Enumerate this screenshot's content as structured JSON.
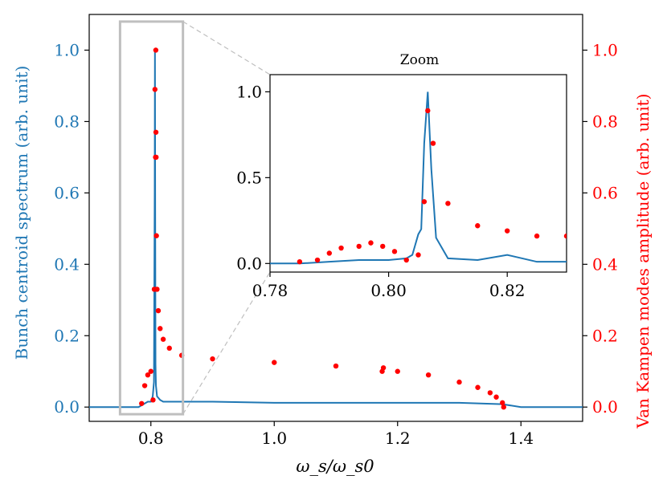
{
  "chart_data": {
    "type": "line",
    "title": "",
    "xlabel": "ω_s/ω_s0",
    "ylabel_left": "Bunch centroid spectrum (arb. unit)",
    "ylabel_right": "Van Kampen modes amplitude (arb. unit)",
    "xlim": [
      0.7,
      1.5
    ],
    "ylim_left": [
      -0.04,
      1.1
    ],
    "ylim_right": [
      -0.04,
      1.1
    ],
    "x_ticks": [
      0.8,
      1.0,
      1.2,
      1.4
    ],
    "x_tick_labels": [
      "0.8",
      "1.0",
      "1.2",
      "1.4"
    ],
    "y_left_ticks": [
      0.0,
      0.2,
      0.4,
      0.6,
      0.8,
      1.0
    ],
    "y_left_tick_labels": [
      "0.0",
      "0.2",
      "0.4",
      "0.6",
      "0.8",
      "1.0"
    ],
    "y_right_ticks": [
      0.0,
      0.2,
      0.4,
      0.6,
      0.8,
      1.0
    ],
    "y_right_tick_labels": [
      "0.0",
      "0.2",
      "0.4",
      "0.6",
      "0.8",
      "1.0"
    ],
    "colors": {
      "spectrum": "#1f77b4",
      "modes": "#ff0000",
      "zoom_box": "#bfbfbf",
      "connector": "#bfbfbf",
      "axis": "#000000"
    },
    "zoom_box_region": {
      "x": [
        0.75,
        0.852
      ],
      "y": [
        -0.02,
        1.08
      ]
    },
    "series": [
      {
        "name": "Bunch centroid spectrum",
        "axis": "left",
        "style": "line",
        "color": "#1f77b4",
        "x": [
          0.7,
          0.78,
          0.79,
          0.795,
          0.8,
          0.803,
          0.805,
          0.8062,
          0.8066,
          0.807,
          0.8075,
          0.8082,
          0.81,
          0.815,
          0.82,
          0.85,
          0.9,
          1.0,
          1.1,
          1.2,
          1.3,
          1.37,
          1.4,
          1.5
        ],
        "values": [
          0.0,
          0.0,
          0.01,
          0.015,
          0.015,
          0.03,
          0.07,
          0.6,
          1.0,
          0.55,
          0.12,
          0.06,
          0.03,
          0.02,
          0.015,
          0.015,
          0.015,
          0.012,
          0.012,
          0.012,
          0.012,
          0.008,
          0.0,
          0.0
        ]
      },
      {
        "name": "Van Kampen modes",
        "axis": "right",
        "style": "scatter",
        "color": "#ff0000",
        "x": [
          0.785,
          0.79,
          0.795,
          0.8,
          0.8035,
          0.8055,
          0.8066,
          0.8075,
          0.808,
          0.8082,
          0.8085,
          0.809,
          0.81,
          0.812,
          0.815,
          0.82,
          0.83,
          0.85,
          0.9,
          1.0,
          1.1,
          1.175,
          1.177,
          1.2,
          1.25,
          1.3,
          1.33,
          1.35,
          1.36,
          1.37,
          1.372
        ],
        "values": [
          0.01,
          0.06,
          0.09,
          0.1,
          0.02,
          0.33,
          0.89,
          0.7,
          1.0,
          0.77,
          0.7,
          0.48,
          0.33,
          0.27,
          0.22,
          0.19,
          0.165,
          0.145,
          0.135,
          0.125,
          0.115,
          0.1,
          0.11,
          0.1,
          0.09,
          0.07,
          0.055,
          0.04,
          0.028,
          0.012,
          0.0
        ]
      }
    ],
    "inset": {
      "title": "Zoom",
      "xlim": [
        0.78,
        0.83
      ],
      "ylim": [
        -0.05,
        1.1
      ],
      "x_ticks": [
        0.78,
        0.8,
        0.82
      ],
      "x_tick_labels": [
        "0.78",
        "0.80",
        "0.82"
      ],
      "y_ticks": [
        0.0,
        0.5,
        1.0
      ],
      "y_tick_labels": [
        "0.0",
        "0.5",
        "1.0"
      ],
      "spectrum": {
        "x": [
          0.78,
          0.785,
          0.79,
          0.795,
          0.8,
          0.803,
          0.804,
          0.805,
          0.8055,
          0.806,
          0.8066,
          0.8072,
          0.808,
          0.81,
          0.815,
          0.82,
          0.825,
          0.83
        ],
        "values": [
          0.0,
          0.0,
          0.01,
          0.02,
          0.02,
          0.03,
          0.05,
          0.17,
          0.2,
          0.7,
          1.0,
          0.55,
          0.15,
          0.03,
          0.02,
          0.05,
          0.01,
          0.01
        ]
      },
      "modes": {
        "x": [
          0.785,
          0.788,
          0.79,
          0.792,
          0.795,
          0.797,
          0.799,
          0.801,
          0.803,
          0.805,
          0.806,
          0.8066,
          0.8075,
          0.81,
          0.815,
          0.82,
          0.825,
          0.83
        ],
        "values": [
          0.01,
          0.02,
          0.06,
          0.09,
          0.1,
          0.12,
          0.1,
          0.07,
          0.02,
          0.05,
          0.36,
          0.89,
          0.7,
          0.35,
          0.22,
          0.19,
          0.16,
          0.16
        ]
      }
    }
  }
}
